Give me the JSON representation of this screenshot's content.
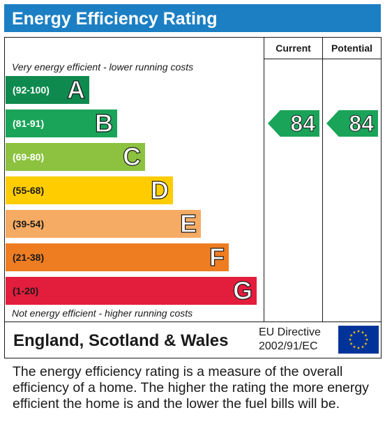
{
  "header": {
    "title": "Energy Efficiency Rating"
  },
  "table": {
    "current_label": "Current",
    "potential_label": "Potential",
    "top_note": "Very energy efficient - lower running costs",
    "bottom_note": "Not energy efficient - higher running costs"
  },
  "chart_data": {
    "type": "bar",
    "title": "Energy Efficiency Rating",
    "categories": [
      "A",
      "B",
      "C",
      "D",
      "E",
      "F",
      "G"
    ],
    "ranges": [
      "(92-100)",
      "(81-91)",
      "(69-80)",
      "(55-68)",
      "(39-54)",
      "(21-38)",
      "(1-20)"
    ],
    "colors": [
      "#0f8a4f",
      "#1aa459",
      "#8cc23f",
      "#ffcc00",
      "#f6ab64",
      "#ee7d22",
      "#e31d3c"
    ],
    "current": {
      "value": "84",
      "band": "B"
    },
    "potential": {
      "value": "84",
      "band": "B"
    }
  },
  "footer": {
    "region": "England, Scotland & Wales",
    "directive_line1": "EU Directive",
    "directive_line2": "2002/91/EC",
    "flag": "eu-flag-icon",
    "flag_colors": {
      "field": "#003399",
      "stars": "#ffcc00"
    }
  },
  "description": "The energy efficiency rating is a measure of the overall efficiency of a home. The higher the rating the more energy efficient the home is and the lower the fuel bills will be."
}
